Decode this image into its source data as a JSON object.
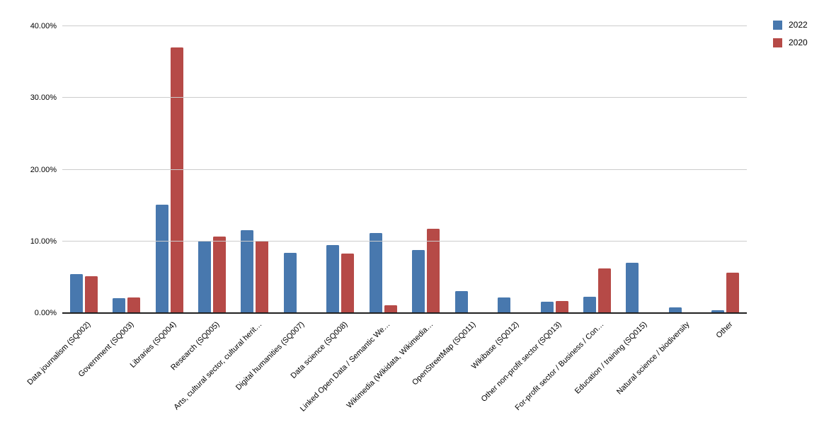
{
  "chart_data": {
    "type": "bar",
    "title": "",
    "xlabel": "",
    "ylabel": "",
    "value_format": "percent",
    "ylim": [
      0,
      40
    ],
    "grid": true,
    "legend_position": "top-right",
    "y_ticks": [
      {
        "label": "0.00%",
        "value": 0
      },
      {
        "label": "10.00%",
        "value": 10
      },
      {
        "label": "20.00%",
        "value": 20
      },
      {
        "label": "30.00%",
        "value": 30
      },
      {
        "label": "40.00%",
        "value": 40
      }
    ],
    "categories": [
      "Data journalism (SQ002)",
      "Government (SQ003)",
      "Libraries (SQ004)",
      "Research (SQ005)",
      "Arts, cultural sector, cultural herit…",
      "Digital humanities (SQ007)",
      "Data science (SQ008)",
      "Linked Open Data / Semantic We…",
      "Wikimedia (Wikidata, Wikimedia…",
      "OpenStreetMap (SQ011)",
      "Wikibase (SQ012)",
      "Other non-profit sector (SQ013)",
      "For-profit sector / Business / Con…",
      "Education / training (SQ015)",
      "Natural science / biodiversity",
      "Other"
    ],
    "series": [
      {
        "name": "2022",
        "color": "#4878ae",
        "values": [
          5.4,
          2.1,
          15.1,
          10.1,
          11.6,
          8.4,
          9.5,
          11.2,
          8.8,
          3.1,
          2.2,
          1.6,
          2.3,
          7.0,
          0.8,
          0.4
        ]
      },
      {
        "name": "2020",
        "color": "#b64a47",
        "values": [
          5.1,
          2.2,
          37.0,
          10.7,
          10.1,
          0,
          8.3,
          1.1,
          11.8,
          0,
          0,
          1.7,
          6.2,
          0,
          0,
          5.6
        ]
      }
    ]
  },
  "colors": {
    "background": "#ffffff",
    "gridline": "#cccccc",
    "axis_line": "#212121",
    "text": "#000000"
  }
}
